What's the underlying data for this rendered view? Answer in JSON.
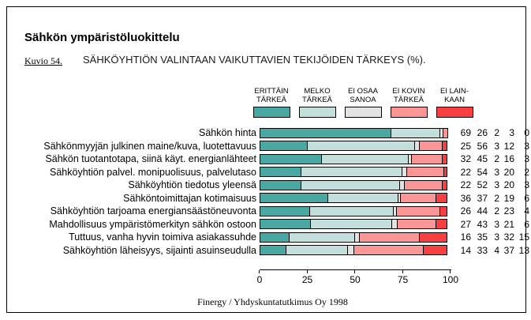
{
  "header": {
    "title": "Sähkön ympäristöluokittelu",
    "figure_label": "Kuvio 54.",
    "subtitle": "SÄHKÖYHTIÖN VALINTAAN VAIKUTTAVIEN TEKIJÖIDEN TÄRKEYS (%)."
  },
  "footer": {
    "source": "Finergy / Yhdyskuntatutkimus Oy 1998"
  },
  "chart_data": {
    "type": "bar",
    "orientation": "horizontal",
    "stacked": true,
    "grid": false,
    "legend_position": "top",
    "xlim": [
      0,
      100
    ],
    "x_ticks": [
      0,
      25,
      50,
      75,
      100
    ],
    "categories": [
      "Sähkön hinta",
      "Sähkönmyyjän julkinen maine/kuva, luotettavuus",
      "Sähkön tuotantotapa, siinä käyt. energianlähteet",
      "Sähköyhtiön palvel. monipuolisuus, palvelutaso",
      "Sähköyhtiön tiedotus yleensä",
      "Sähköntoimittajan kotimaisuus",
      "Sähköyhtiön tarjoama energiansäästöneuvonta",
      "Mahdollisuus ympäristömerkityn sähkön ostoon",
      "Tuttuus, vanha hyvin toimiva asiakassuhde",
      "Sähköyhtiön läheisyys, sijainti asuinseudulla"
    ],
    "series": [
      {
        "name": "ERITTÄIN TÄRKEÄ",
        "legend_lines": [
          "ERITTÄIN",
          "TÄRKEÄ"
        ],
        "color": "#4AA8A2",
        "values": [
          69,
          25,
          32,
          22,
          22,
          36,
          26,
          27,
          16,
          14
        ]
      },
      {
        "name": "MELKO TÄRKEÄ",
        "legend_lines": [
          "MELKO",
          "TÄRKEÄ"
        ],
        "color": "#C2DFDB",
        "values": [
          26,
          56,
          45,
          54,
          52,
          37,
          44,
          43,
          35,
          33
        ]
      },
      {
        "name": "EI OSAA SANOA",
        "legend_lines": [
          "EI OSAA",
          "SANOA"
        ],
        "color": "#E3E3E3",
        "values": [
          2,
          3,
          2,
          3,
          3,
          2,
          2,
          3,
          3,
          4
        ]
      },
      {
        "name": "EI KOVIN TÄRKEÄ",
        "legend_lines": [
          "EI KOVIN",
          "TÄRKEÄ"
        ],
        "color": "#FB9696",
        "values": [
          3,
          12,
          16,
          20,
          20,
          19,
          23,
          21,
          32,
          37
        ]
      },
      {
        "name": "EI LAINKAAN",
        "legend_lines": [
          "EI LAIN-",
          "KAAN"
        ],
        "color": "#F94040",
        "values": [
          0,
          3,
          3,
          2,
          3,
          6,
          4,
          6,
          15,
          13
        ]
      }
    ]
  }
}
